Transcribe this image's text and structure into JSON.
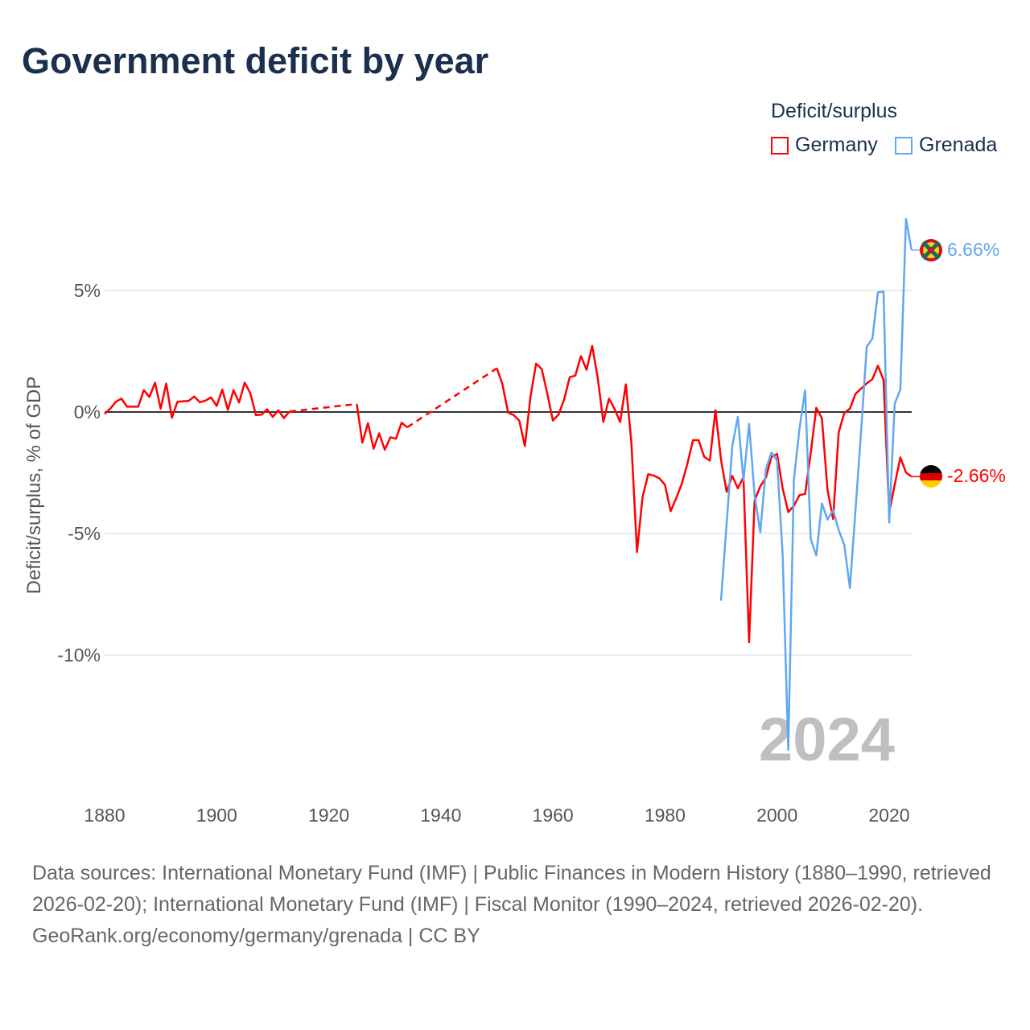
{
  "title": "Government deficit by year",
  "footer": {
    "sources": "Data sources: International Monetary Fund (IMF) | Public Finances in Modern History (1880–1990, retrieved 2026-02-20); International Monetary Fund (IMF) | Fiscal Monitor (1990–2024, retrieved 2026-02-20).",
    "credit": "GeoRank.org/economy/germany/grenada | CC BY"
  },
  "chart_data": {
    "type": "line",
    "title": "Government deficit by year",
    "xlabel": "",
    "ylabel": "Deficit/surplus, % of GDP",
    "legend_title": "Deficit/surplus",
    "legend_position": "top-right",
    "xlim": [
      1880,
      2024
    ],
    "ylim": [
      -14,
      8.5
    ],
    "x_ticks": [
      1880,
      1900,
      1920,
      1940,
      1960,
      1980,
      2000,
      2020
    ],
    "x_tick_labels": [
      "1880",
      "1900",
      "1920",
      "1940",
      "1960",
      "1980",
      "2000",
      "2020"
    ],
    "y_ticks": [
      5,
      0,
      -5,
      -10
    ],
    "y_tick_labels": [
      "5%",
      "0%",
      "-5%",
      "-10%"
    ],
    "grid": true,
    "year_label": "2024",
    "series": [
      {
        "name": "Germany",
        "color": "#ff0000",
        "end_label": "-2.66%",
        "x": [
          1880,
          1881,
          1882,
          1883,
          1884,
          1885,
          1886,
          1887,
          1888,
          1889,
          1890,
          1891,
          1892,
          1893,
          1894,
          1895,
          1896,
          1897,
          1898,
          1899,
          1900,
          1901,
          1902,
          1903,
          1904,
          1905,
          1906,
          1907,
          1908,
          1909,
          1910,
          1911,
          1912,
          1913,
          1925,
          1926,
          1927,
          1928,
          1929,
          1930,
          1931,
          1932,
          1933,
          1934,
          1950,
          1951,
          1952,
          1953,
          1954,
          1955,
          1956,
          1957,
          1958,
          1959,
          1960,
          1961,
          1962,
          1963,
          1964,
          1965,
          1966,
          1967,
          1968,
          1969,
          1970,
          1971,
          1972,
          1973,
          1974,
          1975,
          1976,
          1977,
          1978,
          1979,
          1980,
          1981,
          1982,
          1983,
          1984,
          1985,
          1986,
          1987,
          1988,
          1989,
          1990,
          1991,
          1992,
          1993,
          1994,
          1995,
          1996,
          1997,
          1998,
          1999,
          2000,
          2001,
          2002,
          2003,
          2004,
          2005,
          2006,
          2007,
          2008,
          2009,
          2010,
          2011,
          2012,
          2013,
          2014,
          2015,
          2016,
          2017,
          2018,
          2019,
          2020,
          2021,
          2022,
          2023,
          2024
        ],
        "values": [
          -0.08,
          0.14,
          0.42,
          0.55,
          0.22,
          0.22,
          0.22,
          0.9,
          0.62,
          1.21,
          0.14,
          1.17,
          -0.24,
          0.42,
          0.44,
          0.46,
          0.64,
          0.4,
          0.47,
          0.6,
          0.25,
          0.92,
          0.09,
          0.9,
          0.39,
          1.21,
          0.77,
          -0.13,
          -0.11,
          0.11,
          -0.2,
          0.07,
          -0.25,
          0.02,
          0.33,
          -1.26,
          -0.46,
          -1.51,
          -0.88,
          -1.55,
          -1.04,
          -1.1,
          -0.44,
          -0.63,
          1.8,
          1.14,
          -0.02,
          -0.13,
          -0.35,
          -1.4,
          0.64,
          1.99,
          1.77,
          0.75,
          -0.35,
          -0.11,
          0.51,
          1.43,
          1.5,
          2.3,
          1.74,
          2.72,
          1.41,
          -0.41,
          0.55,
          0.13,
          -0.41,
          1.14,
          -1.24,
          -5.76,
          -3.5,
          -2.56,
          -2.62,
          -2.73,
          -3.0,
          -4.08,
          -3.55,
          -2.95,
          -2.12,
          -1.16,
          -1.16,
          -1.84,
          -2.0,
          0.07,
          -1.96,
          -3.28,
          -2.63,
          -3.14,
          -2.68,
          -9.47,
          -3.64,
          -3.06,
          -2.7,
          -1.84,
          -1.73,
          -3.14,
          -4.12,
          -3.86,
          -3.42,
          -3.37,
          -1.7,
          0.17,
          -0.26,
          -3.21,
          -4.4,
          -0.83,
          -0.04,
          0.14,
          0.75,
          0.96,
          1.18,
          1.35,
          1.9,
          1.32,
          -4.14,
          -2.99,
          -1.87,
          -2.49,
          -2.66
        ],
        "interpolated_gaps": [
          [
            1913,
            1925
          ],
          [
            1934,
            1950
          ]
        ]
      },
      {
        "name": "Grenada",
        "color": "#5fa8f0",
        "end_label": "6.66%",
        "x": [
          1990,
          1991,
          1992,
          1993,
          1994,
          1995,
          1996,
          1997,
          1998,
          1999,
          2000,
          2001,
          2002,
          2003,
          2004,
          2005,
          2006,
          2007,
          2008,
          2009,
          2010,
          2011,
          2012,
          2013,
          2014,
          2015,
          2016,
          2017,
          2018,
          2019,
          2020,
          2021,
          2022,
          2023,
          2024
        ],
        "values": [
          -7.77,
          -4.6,
          -1.41,
          -0.2,
          -2.82,
          -0.49,
          -3.42,
          -4.95,
          -2.35,
          -1.67,
          -2.0,
          -5.87,
          -13.9,
          -2.78,
          -0.69,
          0.89,
          -5.22,
          -5.91,
          -3.76,
          -4.43,
          -4.03,
          -4.86,
          -5.47,
          -7.24,
          -4.0,
          -0.8,
          2.69,
          3.02,
          4.92,
          4.96,
          -4.55,
          0.35,
          0.92,
          7.94,
          6.66
        ]
      }
    ]
  }
}
